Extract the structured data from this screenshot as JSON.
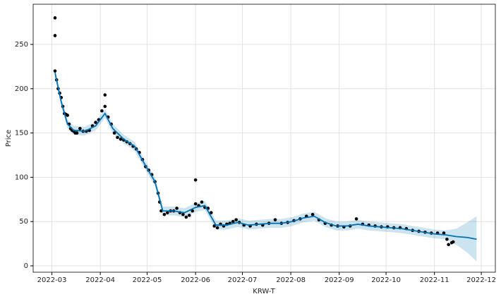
{
  "chart_data": {
    "type": "forecast",
    "xlabel": "KRW-T",
    "ylabel": "Price",
    "xlim": [
      "2022-02-17",
      "2022-12-10"
    ],
    "ylim": [
      -7.2,
      295.4
    ],
    "xticks": [
      {
        "value": "2022-03-01",
        "label": "2022-03"
      },
      {
        "value": "2022-04-01",
        "label": "2022-04"
      },
      {
        "value": "2022-05-01",
        "label": "2022-05"
      },
      {
        "value": "2022-06-01",
        "label": "2022-06"
      },
      {
        "value": "2022-07-01",
        "label": "2022-07"
      },
      {
        "value": "2022-08-01",
        "label": "2022-08"
      },
      {
        "value": "2022-09-01",
        "label": "2022-09"
      },
      {
        "value": "2022-10-01",
        "label": "2022-10"
      },
      {
        "value": "2022-11-01",
        "label": "2022-11"
      },
      {
        "value": "2022-12-01",
        "label": "2022-12"
      }
    ],
    "yticks": [
      0,
      50,
      100,
      150,
      200,
      250
    ],
    "grid": true,
    "points": {
      "color": "#000000",
      "x": [
        "2022-03-03",
        "2022-03-03",
        "2022-03-03",
        "2022-03-04",
        "2022-03-05",
        "2022-03-06",
        "2022-03-07",
        "2022-03-08",
        "2022-03-09",
        "2022-03-10",
        "2022-03-11",
        "2022-03-12",
        "2022-03-13",
        "2022-03-14",
        "2022-03-15",
        "2022-03-16",
        "2022-03-17",
        "2022-03-19",
        "2022-03-21",
        "2022-03-23",
        "2022-03-25",
        "2022-03-27",
        "2022-03-29",
        "2022-03-31",
        "2022-04-02",
        "2022-04-04",
        "2022-04-04",
        "2022-04-06",
        "2022-04-08",
        "2022-04-10",
        "2022-04-12",
        "2022-04-14",
        "2022-04-16",
        "2022-04-18",
        "2022-04-20",
        "2022-04-22",
        "2022-04-24",
        "2022-04-26",
        "2022-04-28",
        "2022-04-30",
        "2022-05-02",
        "2022-05-04",
        "2022-05-06",
        "2022-05-08",
        "2022-05-09",
        "2022-05-10",
        "2022-05-12",
        "2022-05-14",
        "2022-05-16",
        "2022-05-18",
        "2022-05-20",
        "2022-05-22",
        "2022-05-24",
        "2022-05-26",
        "2022-05-28",
        "2022-05-30",
        "2022-06-01",
        "2022-06-01",
        "2022-06-03",
        "2022-06-05",
        "2022-06-07",
        "2022-06-09",
        "2022-06-11",
        "2022-06-13",
        "2022-06-15",
        "2022-06-17",
        "2022-06-19",
        "2022-06-21",
        "2022-06-23",
        "2022-06-25",
        "2022-06-27",
        "2022-06-29",
        "2022-07-02",
        "2022-07-06",
        "2022-07-10",
        "2022-07-14",
        "2022-07-18",
        "2022-07-22",
        "2022-07-26",
        "2022-07-30",
        "2022-08-03",
        "2022-08-07",
        "2022-08-11",
        "2022-08-15",
        "2022-08-19",
        "2022-08-23",
        "2022-08-27",
        "2022-08-31",
        "2022-09-04",
        "2022-09-08",
        "2022-09-12",
        "2022-09-16",
        "2022-09-20",
        "2022-09-24",
        "2022-09-28",
        "2022-10-02",
        "2022-10-06",
        "2022-10-10",
        "2022-10-14",
        "2022-10-18",
        "2022-10-22",
        "2022-10-26",
        "2022-10-30",
        "2022-11-03",
        "2022-11-07",
        "2022-11-09",
        "2022-11-10",
        "2022-11-12",
        "2022-11-13"
      ],
      "values": [
        280,
        260,
        220,
        210,
        200,
        195,
        190,
        180,
        172,
        171,
        170,
        160,
        155,
        153,
        152,
        150,
        150,
        155,
        152,
        152,
        153,
        158,
        162,
        165,
        175,
        180,
        193,
        168,
        160,
        150,
        145,
        143,
        142,
        140,
        138,
        135,
        132,
        128,
        120,
        112,
        108,
        103,
        95,
        82,
        72,
        62,
        58,
        60,
        62,
        62,
        65,
        60,
        58,
        55,
        57,
        62,
        70,
        97,
        68,
        72,
        66,
        65,
        60,
        45,
        43,
        47,
        45,
        47,
        48,
        50,
        52,
        49,
        46,
        45,
        47,
        46,
        48,
        52,
        48,
        49,
        51,
        53,
        56,
        58,
        52,
        48,
        46,
        45,
        44,
        45,
        53,
        47,
        46,
        45,
        44,
        44,
        43,
        43,
        42,
        40,
        39,
        38,
        37,
        37,
        37,
        30,
        24,
        26,
        27
      ]
    },
    "forecast": {
      "color": "#0072B2",
      "x": [
        "2022-03-03",
        "2022-03-07",
        "2022-03-11",
        "2022-03-15",
        "2022-03-22",
        "2022-03-29",
        "2022-04-04",
        "2022-04-09",
        "2022-04-16",
        "2022-04-23",
        "2022-04-30",
        "2022-05-06",
        "2022-05-11",
        "2022-05-18",
        "2022-05-25",
        "2022-06-01",
        "2022-06-07",
        "2022-06-14",
        "2022-06-21",
        "2022-06-28",
        "2022-07-05",
        "2022-07-12",
        "2022-07-19",
        "2022-07-26",
        "2022-08-02",
        "2022-08-09",
        "2022-08-16",
        "2022-08-23",
        "2022-08-30",
        "2022-09-06",
        "2022-09-13",
        "2022-09-20",
        "2022-09-27",
        "2022-10-04",
        "2022-10-11",
        "2022-10-18",
        "2022-10-25",
        "2022-11-01",
        "2022-11-08",
        "2022-11-15",
        "2022-11-22",
        "2022-11-28"
      ],
      "values": [
        218,
        185,
        160,
        153,
        152,
        158,
        172,
        155,
        143,
        135,
        113,
        95,
        62,
        62,
        60,
        66,
        68,
        46,
        46,
        49,
        46,
        47,
        48,
        48,
        50,
        54,
        56,
        49,
        45,
        45,
        47,
        45,
        44,
        43,
        42,
        40,
        38,
        36,
        35,
        33,
        32,
        30
      ],
      "lower": [
        213,
        180,
        155,
        148,
        147,
        153,
        167,
        150,
        138,
        130,
        108,
        90,
        57,
        57,
        55,
        61,
        63,
        41,
        41,
        44,
        41,
        42,
        43,
        43,
        45,
        49,
        51,
        44,
        40,
        40,
        42,
        40,
        39,
        38,
        37,
        35,
        33,
        31,
        30,
        24,
        15,
        5
      ],
      "upper": [
        223,
        190,
        165,
        158,
        157,
        163,
        177,
        160,
        148,
        140,
        118,
        100,
        67,
        67,
        65,
        71,
        73,
        51,
        51,
        54,
        51,
        52,
        53,
        53,
        55,
        59,
        61,
        54,
        50,
        50,
        52,
        50,
        49,
        48,
        47,
        45,
        43,
        41,
        40,
        42,
        49,
        56
      ]
    }
  }
}
